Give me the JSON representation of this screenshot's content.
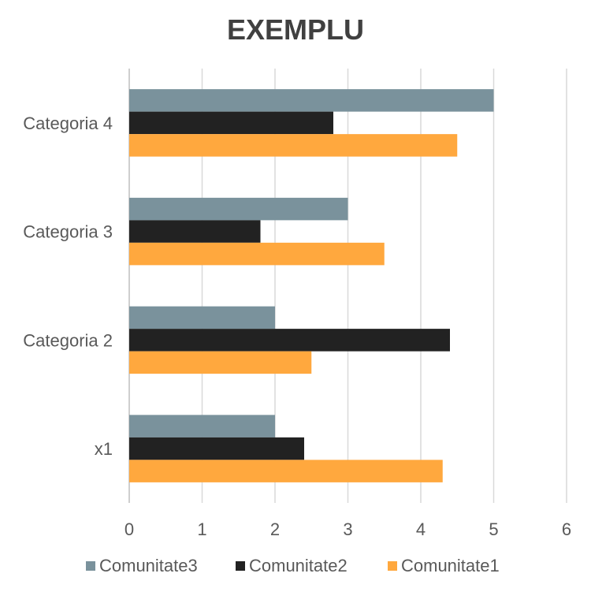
{
  "chart_data": {
    "type": "bar",
    "orientation": "horizontal",
    "title": "EXEMPLU",
    "categories": [
      "x1",
      "Categoria 2",
      "Categoria 3",
      "Categoria 4"
    ],
    "series": [
      {
        "name": "Comunitate1",
        "color": "#FFA83E",
        "values": [
          4.3,
          2.5,
          3.5,
          4.5
        ]
      },
      {
        "name": "Comunitate2",
        "color": "#222222",
        "values": [
          2.4,
          4.4,
          1.8,
          2.8
        ]
      },
      {
        "name": "Comunitate3",
        "color": "#7A929C",
        "values": [
          2,
          2,
          3,
          5
        ]
      }
    ],
    "xlim": [
      0,
      6
    ],
    "x_ticks": [
      "0",
      "1",
      "2",
      "3",
      "4",
      "5",
      "6"
    ],
    "grid": "vertical",
    "legend_position": "bottom",
    "legend_order": [
      "Comunitate3",
      "Comunitate2",
      "Comunitate1"
    ]
  }
}
